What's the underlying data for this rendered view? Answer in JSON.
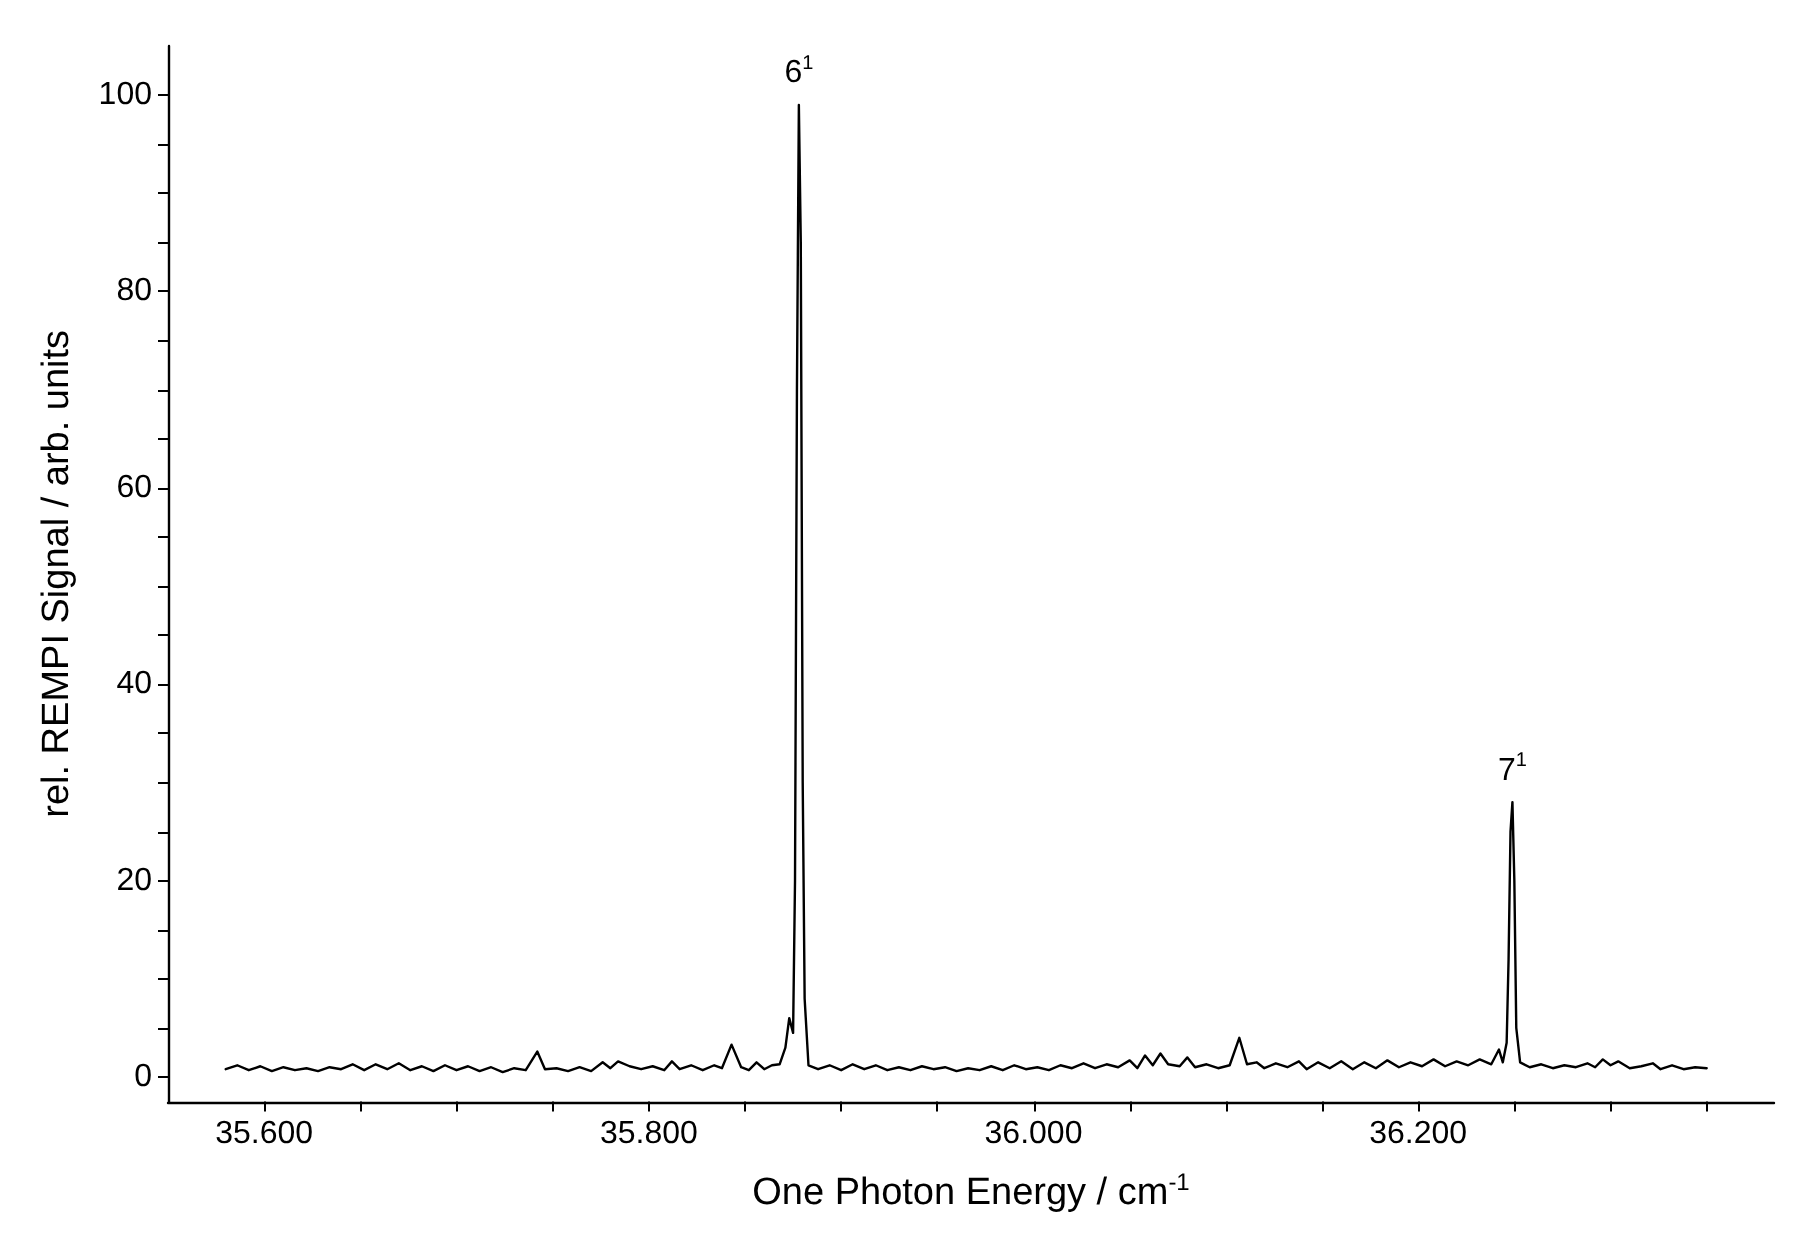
{
  "chart_data": {
    "type": "line",
    "xlabel": "One Photon Energy / cm$^{-1}$",
    "ylabel": "rel. REMPI Signal / arb. units",
    "x": [
      35580,
      35586,
      35592,
      35598,
      35604,
      35610,
      35616,
      35622,
      35628,
      35634,
      35640,
      35646,
      35652,
      35658,
      35664,
      35670,
      35676,
      35682,
      35688,
      35694,
      35700,
      35706,
      35712,
      35718,
      35724,
      35730,
      35736,
      35742,
      35746,
      35752,
      35758,
      35764,
      35770,
      35776,
      35780,
      35784,
      35790,
      35796,
      35802,
      35808,
      35812,
      35816,
      35822,
      35828,
      35834,
      35838,
      35843,
      35848,
      35852,
      35856,
      35860,
      35864,
      35868,
      35871,
      35873,
      35875,
      35876,
      35877,
      35878,
      35879,
      35880,
      35881,
      35883,
      35888,
      35894,
      35900,
      35906,
      35912,
      35918,
      35924,
      35930,
      35936,
      35942,
      35948,
      35954,
      35960,
      35966,
      35972,
      35978,
      35984,
      35990,
      35996,
      36002,
      36008,
      36014,
      36020,
      36026,
      36032,
      36038,
      36044,
      36050,
      36054,
      36058,
      36062,
      36066,
      36070,
      36076,
      36080,
      36084,
      36090,
      36096,
      36102,
      36107,
      36111,
      36116,
      36120,
      36126,
      36132,
      36138,
      36142,
      36148,
      36154,
      36160,
      36166,
      36172,
      36178,
      36184,
      36190,
      36196,
      36202,
      36208,
      36214,
      36220,
      36226,
      36232,
      36238,
      36242,
      36244,
      36246,
      36247,
      36248,
      36249,
      36250,
      36251,
      36253,
      36258,
      36264,
      36270,
      36276,
      36282,
      36288,
      36292,
      36296,
      36300,
      36304,
      36310,
      36316,
      36322,
      36326,
      36332,
      36338,
      36344,
      36350
    ],
    "series": [
      {
        "color": "#000000",
        "values": [
          0.8,
          1.2,
          0.7,
          1.1,
          0.6,
          1.0,
          0.7,
          0.9,
          0.6,
          1.0,
          0.8,
          1.3,
          0.7,
          1.3,
          0.8,
          1.4,
          0.7,
          1.1,
          0.6,
          1.2,
          0.7,
          1.1,
          0.6,
          1.0,
          0.5,
          0.9,
          0.7,
          2.6,
          0.8,
          0.9,
          0.6,
          1.0,
          0.6,
          1.5,
          0.9,
          1.6,
          1.1,
          0.8,
          1.1,
          0.7,
          1.6,
          0.8,
          1.2,
          0.7,
          1.2,
          0.9,
          3.3,
          1.0,
          0.7,
          1.5,
          0.8,
          1.2,
          1.3,
          3.0,
          6.0,
          4.5,
          20,
          70,
          99,
          85,
          30,
          8,
          1.2,
          0.8,
          1.2,
          0.7,
          1.3,
          0.8,
          1.2,
          0.7,
          1.0,
          0.7,
          1.1,
          0.8,
          1.0,
          0.6,
          0.9,
          0.7,
          1.1,
          0.7,
          1.2,
          0.8,
          1.0,
          0.7,
          1.2,
          0.9,
          1.4,
          0.9,
          1.3,
          1.0,
          1.7,
          0.9,
          2.2,
          1.2,
          2.4,
          1.3,
          1.1,
          2.0,
          1.0,
          1.3,
          0.9,
          1.2,
          4.0,
          1.3,
          1.5,
          0.9,
          1.4,
          1.0,
          1.6,
          0.8,
          1.5,
          0.9,
          1.6,
          0.8,
          1.5,
          0.9,
          1.7,
          1.0,
          1.5,
          1.1,
          1.8,
          1.1,
          1.6,
          1.2,
          1.8,
          1.3,
          2.8,
          1.5,
          3.5,
          12,
          25,
          28,
          20,
          5,
          1.5,
          1.0,
          1.3,
          0.9,
          1.2,
          1.0,
          1.4,
          1.0,
          1.8,
          1.2,
          1.6,
          0.9,
          1.1,
          1.4,
          0.8,
          1.2,
          0.8,
          1.0,
          0.9
        ]
      }
    ],
    "xlim": [
      35550,
      36385
    ],
    "xticks": [
      {
        "value": 35600,
        "label": "35.600"
      },
      {
        "value": 35650,
        "label": null
      },
      {
        "value": 35700,
        "label": null
      },
      {
        "value": 35750,
        "label": null
      },
      {
        "value": 35800,
        "label": "35.800"
      },
      {
        "value": 35850,
        "label": null
      },
      {
        "value": 35900,
        "label": null
      },
      {
        "value": 35950,
        "label": null
      },
      {
        "value": 36000,
        "label": "36.000"
      },
      {
        "value": 36050,
        "label": null
      },
      {
        "value": 36100,
        "label": null
      },
      {
        "value": 36150,
        "label": null
      },
      {
        "value": 36200,
        "label": "36.200"
      },
      {
        "value": 36250,
        "label": null
      },
      {
        "value": 36300,
        "label": null
      },
      {
        "value": 36350,
        "label": null
      }
    ],
    "ylim": [
      -2.5,
      105
    ],
    "yticks": [
      0,
      {
        "value": 5,
        "label": null
      },
      {
        "value": 10,
        "label": null
      },
      {
        "value": 15,
        "label": null
      },
      20,
      {
        "value": 25,
        "label": null
      },
      {
        "value": 30,
        "label": null
      },
      {
        "value": 35,
        "label": null
      },
      40,
      {
        "value": 45,
        "label": null
      },
      {
        "value": 50,
        "label": null
      },
      {
        "value": 55,
        "label": null
      },
      60,
      {
        "value": 65,
        "label": null
      },
      {
        "value": 70,
        "label": null
      },
      {
        "value": 75,
        "label": null
      },
      80,
      {
        "value": 85,
        "label": null
      },
      {
        "value": 90,
        "label": null
      },
      {
        "value": 95,
        "label": null
      },
      100
    ],
    "annotations": [
      {
        "text": "6$^{1}$",
        "x": 35878,
        "y": 99
      },
      {
        "text": "7$^{1}$",
        "x": 36249,
        "y": 28
      }
    ],
    "grid": false,
    "marker": "none",
    "line_style": "solid"
  }
}
